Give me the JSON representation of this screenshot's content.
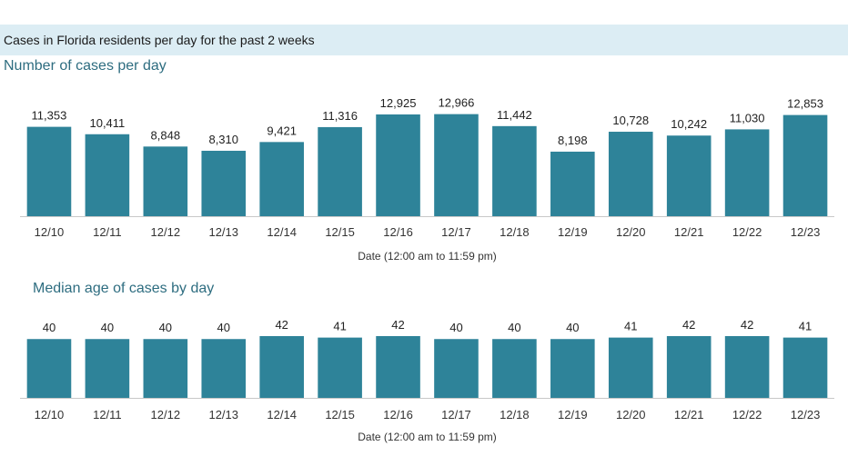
{
  "header": {
    "title": "Cases in Florida residents per day for the past 2 weeks"
  },
  "colors": {
    "bar": "#2e8399",
    "header_band": "#dcedf4",
    "chart_title": "#2e6d80",
    "axis": "#c8c8c8"
  },
  "chart_data": [
    {
      "type": "bar",
      "title": "Number of cases per day",
      "xlabel": "Date (12:00 am to 11:59 pm)",
      "ylabel": "",
      "ylim": [
        0,
        13500
      ],
      "grid": false,
      "categories": [
        "12/10",
        "12/11",
        "12/12",
        "12/13",
        "12/14",
        "12/15",
        "12/16",
        "12/17",
        "12/18",
        "12/19",
        "12/20",
        "12/21",
        "12/22",
        "12/23"
      ],
      "values": [
        11353,
        10411,
        8848,
        8310,
        9421,
        11316,
        12925,
        12966,
        11442,
        8198,
        10728,
        10242,
        11030,
        12853
      ],
      "data_labels": [
        "11,353",
        "10,411",
        "8,848",
        "8,310",
        "9,421",
        "11,316",
        "12,925",
        "12,966",
        "11,442",
        "8,198",
        "10,728",
        "10,242",
        "11,030",
        "12,853"
      ]
    },
    {
      "type": "bar",
      "title": "Median age of cases by day",
      "xlabel": "Date (12:00 am to 11:59 pm)",
      "ylabel": "",
      "ylim": [
        0,
        42
      ],
      "grid": false,
      "categories": [
        "12/10",
        "12/11",
        "12/12",
        "12/13",
        "12/14",
        "12/15",
        "12/16",
        "12/17",
        "12/18",
        "12/19",
        "12/20",
        "12/21",
        "12/22",
        "12/23"
      ],
      "values": [
        40,
        40,
        40,
        40,
        42,
        41,
        42,
        40,
        40,
        40,
        41,
        42,
        42,
        41
      ],
      "data_labels": [
        "40",
        "40",
        "40",
        "40",
        "42",
        "41",
        "42",
        "40",
        "40",
        "40",
        "41",
        "42",
        "42",
        "41"
      ]
    }
  ]
}
